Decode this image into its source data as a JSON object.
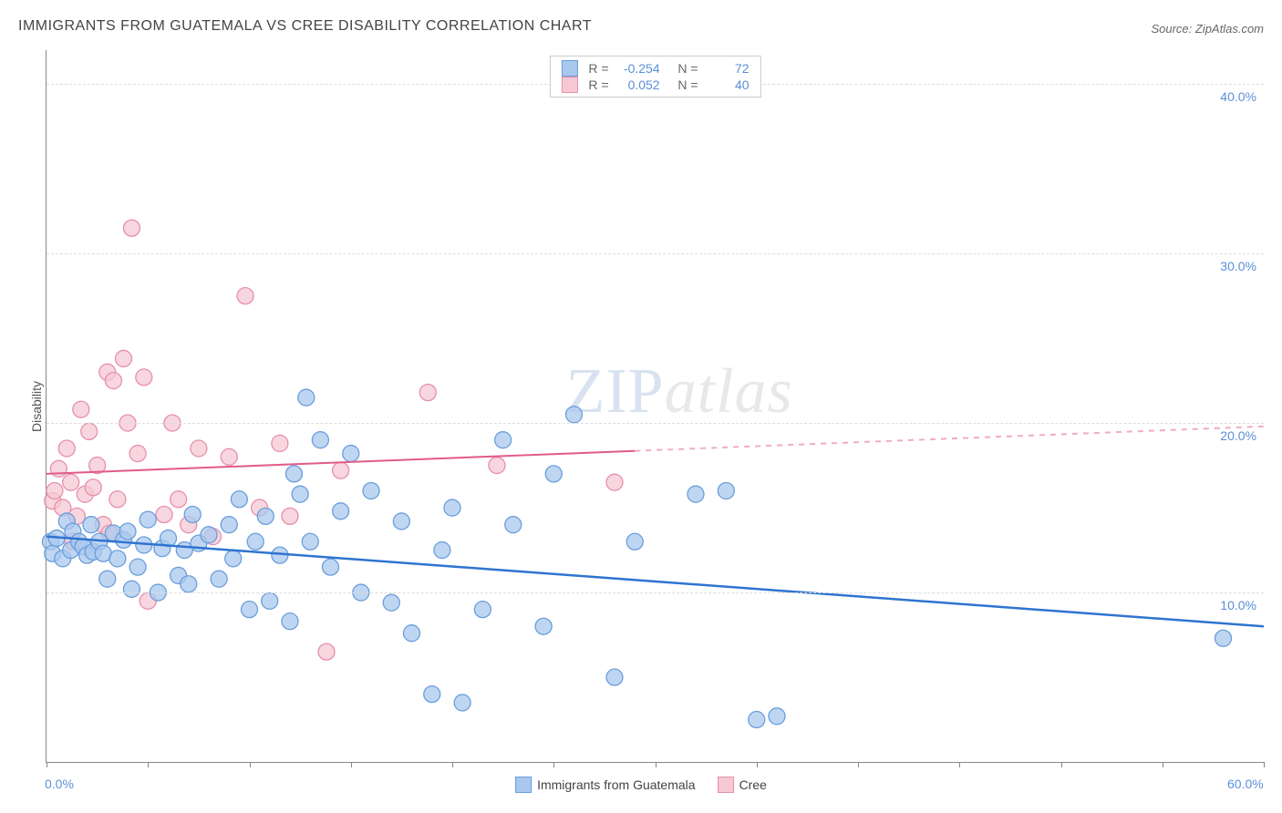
{
  "title": "IMMIGRANTS FROM GUATEMALA VS CREE DISABILITY CORRELATION CHART",
  "source": "Source: ZipAtlas.com",
  "ylabel": "Disability",
  "watermark": {
    "part1": "ZIP",
    "part2": "atlas"
  },
  "chart": {
    "type": "scatter",
    "xlim": [
      0,
      60
    ],
    "ylim": [
      0,
      42
    ],
    "x_ticks": [
      0,
      5,
      10,
      15,
      20,
      25,
      30,
      35,
      40,
      45,
      50,
      55,
      60
    ],
    "x_tick_labels": {
      "0": "0.0%",
      "60": "60.0%"
    },
    "y_gridlines": [
      10,
      20,
      30,
      40
    ],
    "y_tick_labels": [
      "10.0%",
      "20.0%",
      "30.0%",
      "40.0%"
    ],
    "series": [
      {
        "name": "Immigrants from Guatemala",
        "key": "guatemala",
        "fill": "#a9c8ed",
        "stroke": "#6a9edb",
        "marker_r": 9,
        "R": "-0.254",
        "N": "72",
        "trend": {
          "color": "#2f74d0",
          "width": 2.5,
          "y_at_x0": 13.3,
          "y_at_x60": 8.0,
          "dash_from_x": null
        },
        "points": [
          [
            0.2,
            13.0
          ],
          [
            0.3,
            12.3
          ],
          [
            0.5,
            13.2
          ],
          [
            0.8,
            12.0
          ],
          [
            1.0,
            14.2
          ],
          [
            1.2,
            12.5
          ],
          [
            1.3,
            13.6
          ],
          [
            1.6,
            13.0
          ],
          [
            1.8,
            12.7
          ],
          [
            2.0,
            12.2
          ],
          [
            2.2,
            14.0
          ],
          [
            2.3,
            12.4
          ],
          [
            2.6,
            13.0
          ],
          [
            2.8,
            12.3
          ],
          [
            3.0,
            10.8
          ],
          [
            3.3,
            13.5
          ],
          [
            3.5,
            12.0
          ],
          [
            3.8,
            13.1
          ],
          [
            4.0,
            13.6
          ],
          [
            4.2,
            10.2
          ],
          [
            4.5,
            11.5
          ],
          [
            4.8,
            12.8
          ],
          [
            5.0,
            14.3
          ],
          [
            5.5,
            10.0
          ],
          [
            5.7,
            12.6
          ],
          [
            6.0,
            13.2
          ],
          [
            6.5,
            11.0
          ],
          [
            6.8,
            12.5
          ],
          [
            7.0,
            10.5
          ],
          [
            7.2,
            14.6
          ],
          [
            7.5,
            12.9
          ],
          [
            8.0,
            13.4
          ],
          [
            8.5,
            10.8
          ],
          [
            9.0,
            14.0
          ],
          [
            9.2,
            12.0
          ],
          [
            9.5,
            15.5
          ],
          [
            10.0,
            9.0
          ],
          [
            10.3,
            13.0
          ],
          [
            10.8,
            14.5
          ],
          [
            11.0,
            9.5
          ],
          [
            11.5,
            12.2
          ],
          [
            12.0,
            8.3
          ],
          [
            12.2,
            17.0
          ],
          [
            12.5,
            15.8
          ],
          [
            12.8,
            21.5
          ],
          [
            13.0,
            13.0
          ],
          [
            13.5,
            19.0
          ],
          [
            14.0,
            11.5
          ],
          [
            14.5,
            14.8
          ],
          [
            15.0,
            18.2
          ],
          [
            15.5,
            10.0
          ],
          [
            16.0,
            16.0
          ],
          [
            17.0,
            9.4
          ],
          [
            17.5,
            14.2
          ],
          [
            18.0,
            7.6
          ],
          [
            19.0,
            4.0
          ],
          [
            19.5,
            12.5
          ],
          [
            20.0,
            15.0
          ],
          [
            20.5,
            3.5
          ],
          [
            21.5,
            9.0
          ],
          [
            22.5,
            19.0
          ],
          [
            23.0,
            14.0
          ],
          [
            24.5,
            8.0
          ],
          [
            25.0,
            17.0
          ],
          [
            26.0,
            20.5
          ],
          [
            28.0,
            5.0
          ],
          [
            29.0,
            13.0
          ],
          [
            32.0,
            15.8
          ],
          [
            33.5,
            16.0
          ],
          [
            35.0,
            2.5
          ],
          [
            36.0,
            2.7
          ],
          [
            58.0,
            7.3
          ]
        ]
      },
      {
        "name": "Cree",
        "key": "cree",
        "fill": "#f6c8d4",
        "stroke": "#e78fab",
        "marker_r": 9,
        "R": "0.052",
        "N": "40",
        "trend": {
          "color": "#e15a8a",
          "width": 2,
          "y_at_x0": 17.0,
          "y_at_x60": 19.8,
          "dash_from_x": 29
        },
        "points": [
          [
            0.3,
            15.4
          ],
          [
            0.4,
            16.0
          ],
          [
            0.6,
            17.3
          ],
          [
            0.8,
            15.0
          ],
          [
            1.0,
            18.5
          ],
          [
            1.2,
            16.5
          ],
          [
            1.3,
            13.0
          ],
          [
            1.5,
            14.5
          ],
          [
            1.7,
            20.8
          ],
          [
            1.9,
            15.8
          ],
          [
            2.1,
            19.5
          ],
          [
            2.3,
            16.2
          ],
          [
            2.5,
            17.5
          ],
          [
            2.8,
            14.0
          ],
          [
            3.0,
            23.0
          ],
          [
            3.1,
            13.5
          ],
          [
            3.3,
            22.5
          ],
          [
            3.5,
            15.5
          ],
          [
            3.8,
            23.8
          ],
          [
            4.0,
            20.0
          ],
          [
            4.2,
            31.5
          ],
          [
            4.5,
            18.2
          ],
          [
            4.8,
            22.7
          ],
          [
            5.0,
            9.5
          ],
          [
            5.8,
            14.6
          ],
          [
            6.2,
            20.0
          ],
          [
            6.5,
            15.5
          ],
          [
            7.0,
            14.0
          ],
          [
            7.5,
            18.5
          ],
          [
            8.2,
            13.3
          ],
          [
            9.0,
            18.0
          ],
          [
            9.8,
            27.5
          ],
          [
            10.5,
            15.0
          ],
          [
            11.5,
            18.8
          ],
          [
            12.0,
            14.5
          ],
          [
            13.8,
            6.5
          ],
          [
            14.5,
            17.2
          ],
          [
            18.8,
            21.8
          ],
          [
            22.2,
            17.5
          ],
          [
            28.0,
            16.5
          ]
        ]
      }
    ]
  },
  "legend_bottom": [
    {
      "label": "Immigrants from Guatemala",
      "fill": "#a9c8ed",
      "stroke": "#6a9edb"
    },
    {
      "label": "Cree",
      "fill": "#f6c8d4",
      "stroke": "#e78fab"
    }
  ]
}
